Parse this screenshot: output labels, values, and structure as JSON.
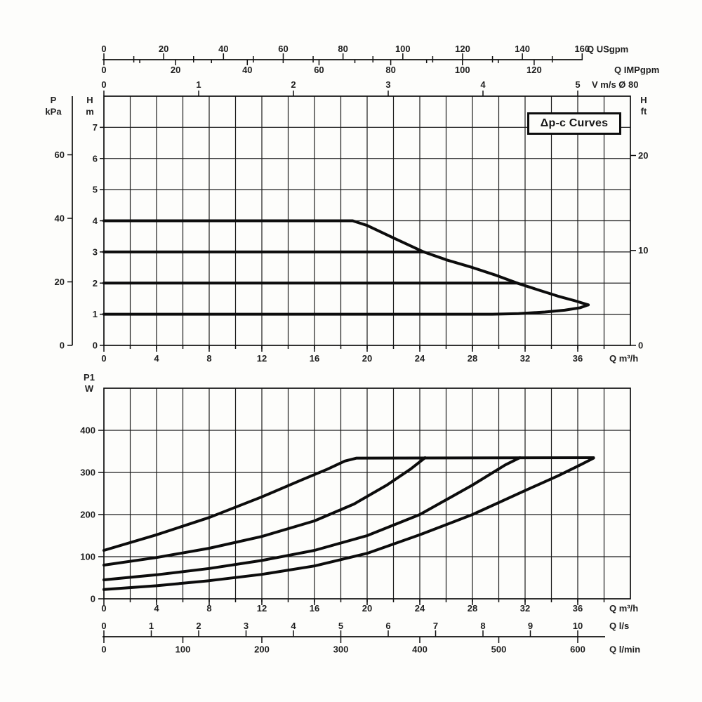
{
  "figure": {
    "title_box_label": "Δp-c Curves",
    "background": "#fdfdfb",
    "line_color": "#0c0c0c",
    "text_color": "#1f1f1f"
  },
  "chart_data": [
    {
      "id": "head_flow_chart",
      "type": "line",
      "title": "Δp-c Curves",
      "grid": "on",
      "x_base_unit": "m³/h",
      "x_range": [
        0,
        40
      ],
      "grid_x_step": 2,
      "y_range_m": [
        0,
        8
      ],
      "grid_y_step": 1,
      "x_axes": [
        {
          "name": "flow-usgpm",
          "label": "Q USgpm",
          "ticks": [
            0,
            20,
            40,
            60,
            80,
            100,
            120,
            140,
            160
          ],
          "minor_step": 10,
          "m3h_per_unit": 0.2271
        },
        {
          "name": "flow-impgpm",
          "label": "Q IMPgpm",
          "ticks": [
            0,
            20,
            40,
            60,
            80,
            100,
            120
          ],
          "minor_step": 10,
          "m3h_per_unit": 0.2724
        },
        {
          "name": "velocity",
          "label": "V m/s Ø 80",
          "ticks": [
            0,
            1,
            2,
            3,
            4,
            5
          ],
          "m3h_per_unit": 7.2
        },
        {
          "name": "flow-m3h",
          "label": "Q m³/h",
          "ticks": [
            0,
            4,
            8,
            12,
            16,
            20,
            24,
            28,
            32,
            36
          ],
          "minor_step": 2,
          "m3h_per_unit": 1
        }
      ],
      "y_axes": [
        {
          "name": "pressure-kpa",
          "label": "P kPa",
          "ticks": [
            0,
            20,
            40,
            60
          ],
          "m_per_unit": 0.10197
        },
        {
          "name": "head-m",
          "label": "H m",
          "ticks": [
            0,
            1,
            2,
            3,
            4,
            5,
            6,
            7
          ],
          "m_per_unit": 1
        },
        {
          "name": "head-ft",
          "label": "H ft",
          "ticks": [
            0,
            10,
            20
          ],
          "m_per_unit": 0.3048
        }
      ],
      "series": [
        {
          "name": "head-setpoint-4m",
          "points": [
            [
              0,
              4
            ],
            [
              18.9,
              4
            ],
            [
              20,
              3.85
            ],
            [
              22,
              3.45
            ],
            [
              24.3,
              3
            ],
            [
              26,
              2.75
            ],
            [
              28,
              2.5
            ],
            [
              29.8,
              2.25
            ],
            [
              31.4,
              2
            ],
            [
              33,
              1.78
            ],
            [
              34.5,
              1.58
            ],
            [
              35.8,
              1.43
            ],
            [
              36.8,
              1.3
            ]
          ]
        },
        {
          "name": "head-setpoint-3m",
          "points": [
            [
              0,
              3
            ],
            [
              24.3,
              3
            ]
          ]
        },
        {
          "name": "head-setpoint-2m",
          "points": [
            [
              0,
              2
            ],
            [
              31.4,
              2
            ]
          ]
        },
        {
          "name": "head-setpoint-1m",
          "points": [
            [
              0,
              1
            ],
            [
              29.5,
              1
            ],
            [
              31.5,
              1.02
            ],
            [
              33.5,
              1.07
            ],
            [
              35,
              1.13
            ],
            [
              36.2,
              1.21
            ],
            [
              36.8,
              1.3
            ]
          ]
        }
      ]
    },
    {
      "id": "power_flow_chart",
      "type": "line",
      "title": "",
      "grid": "on",
      "x_base_unit": "m³/h",
      "x_range": [
        0,
        40
      ],
      "grid_x_step": 2,
      "y_range_w": [
        0,
        500
      ],
      "grid_y_step": 100,
      "y_axis": {
        "name": "power-p1",
        "label": "P1 W",
        "ticks": [
          0,
          100,
          200,
          300,
          400
        ]
      },
      "x_axes": [
        {
          "name": "flow-m3h",
          "label": "Q m³/h",
          "ticks": [
            0,
            4,
            8,
            12,
            16,
            20,
            24,
            28,
            32,
            36
          ],
          "minor_step": 2,
          "m3h_per_unit": 1
        },
        {
          "name": "flow-ls",
          "label": "Q l/s",
          "ticks": [
            0,
            1,
            2,
            3,
            4,
            5,
            6,
            7,
            8,
            9,
            10
          ],
          "m3h_per_unit": 3.6
        },
        {
          "name": "flow-lmin",
          "label": "Q l/min",
          "ticks": [
            0,
            100,
            200,
            300,
            400,
            500,
            600
          ],
          "m3h_per_unit": 0.06
        }
      ],
      "series": [
        {
          "name": "power-setpoint-4m",
          "points": [
            [
              0,
              115
            ],
            [
              4,
              152
            ],
            [
              8,
              193
            ],
            [
              12,
              242
            ],
            [
              15,
              282
            ],
            [
              17,
              308
            ],
            [
              18.3,
              327
            ],
            [
              19.2,
              334
            ],
            [
              37.2,
              335
            ]
          ]
        },
        {
          "name": "power-setpoint-3m",
          "points": [
            [
              0,
              80
            ],
            [
              4,
              98
            ],
            [
              8,
              120
            ],
            [
              12,
              148
            ],
            [
              16,
              185
            ],
            [
              19,
              225
            ],
            [
              21.5,
              270
            ],
            [
              23.3,
              308
            ],
            [
              24.4,
              335
            ]
          ]
        },
        {
          "name": "power-setpoint-2m",
          "points": [
            [
              0,
              45
            ],
            [
              4,
              57
            ],
            [
              8,
              72
            ],
            [
              12,
              91
            ],
            [
              16,
              115
            ],
            [
              20,
              150
            ],
            [
              24,
              200
            ],
            [
              28,
              270
            ],
            [
              30.5,
              318
            ],
            [
              31.6,
              335
            ]
          ]
        },
        {
          "name": "power-setpoint-1m",
          "points": [
            [
              0,
              22
            ],
            [
              4,
              31
            ],
            [
              8,
              43
            ],
            [
              12,
              58
            ],
            [
              16,
              78
            ],
            [
              20,
              108
            ],
            [
              24,
              152
            ],
            [
              28,
              200
            ],
            [
              32,
              257
            ],
            [
              34.5,
              292
            ],
            [
              36.2,
              318
            ],
            [
              37.2,
              334
            ]
          ]
        }
      ]
    }
  ]
}
